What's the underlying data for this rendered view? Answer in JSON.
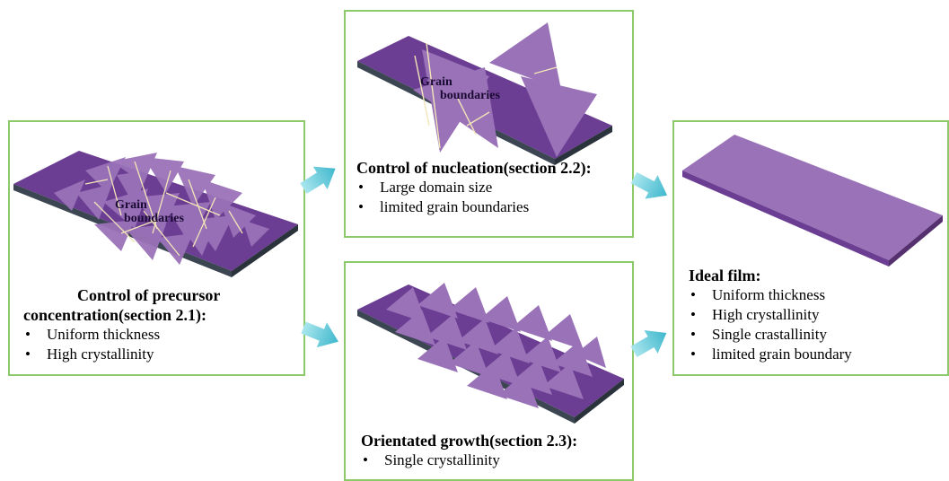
{
  "precursor": {
    "label": "Grain\nboundaries",
    "label_line1": "Grain",
    "label_line2": "boundaries",
    "title_line1": "Control of precursor",
    "title_line2": "concentration(section 2.1):",
    "bullets": [
      "Uniform thickness",
      "High  crystallinity"
    ]
  },
  "nucleation": {
    "label_line1": "Grain",
    "label_line2": "boundaries",
    "title": "Control of nucleation(section 2.2):",
    "bullets": [
      "Large domain size",
      "limited grain boundaries"
    ]
  },
  "growth": {
    "title": "Orientated growth(section 2.3):",
    "bullets": [
      "Single  crystallinity"
    ]
  },
  "ideal": {
    "title": "Ideal film:",
    "bullets": [
      "Uniform thickness",
      "High crystallinity",
      "Single crastallinity",
      "limited grain boundary"
    ]
  },
  "colors": {
    "film": "#6b3d93",
    "film_light": "#9a72b8",
    "substrate": "#3b4652",
    "panel_border": "#8cc96b",
    "arrow": "#56c8d8"
  }
}
